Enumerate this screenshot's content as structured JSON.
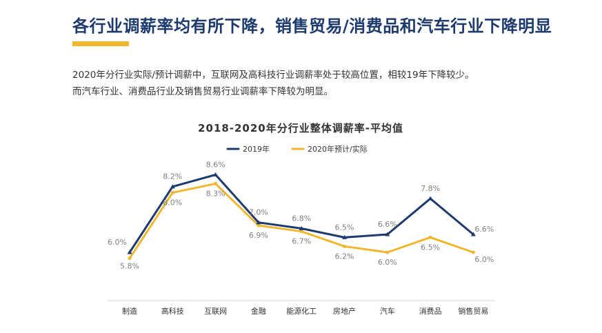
{
  "header": {
    "headline": "各行业调薪率均有所下降，销售贸易/消费品和汽车行业下降明显",
    "accent_color": "#f0b62e"
  },
  "description": {
    "line1": "2020年分行业实际/预计调薪中，互联网及高科技行业调薪率处于较高位置，相较19年下降较少。",
    "line2": "而汽车行业、消费品行业及销售贸易行业调薪率下降较为明显。"
  },
  "chart_data": {
    "type": "line",
    "title": "2018-2020年分行业整体调薪率-平均值",
    "categories": [
      "制造",
      "高科技",
      "互联网",
      "金融",
      "能源化工",
      "房地产",
      "汽车",
      "消费品",
      "销售贸易"
    ],
    "series": [
      {
        "name": "2019年",
        "color": "#1d3a6e",
        "values": [
          6.0,
          8.2,
          8.6,
          7.0,
          6.8,
          6.5,
          6.6,
          7.8,
          6.6
        ],
        "labels": [
          "6.0%",
          "8.2%",
          "8.6%",
          "7.0%",
          "6.8%",
          "6.5%",
          "6.6%",
          "7.8%",
          "6.6%"
        ]
      },
      {
        "name": "2020年预计/实际",
        "color": "#f0b62e",
        "values": [
          5.8,
          8.0,
          8.3,
          6.9,
          6.7,
          6.2,
          6.0,
          6.5,
          6.0
        ],
        "labels": [
          "5.8%",
          "8.0%",
          "8.3%",
          "6.9%",
          "6.7%",
          "6.2%",
          "6.0%",
          "6.5%",
          "6.0%"
        ]
      }
    ],
    "legend_position": "top-center",
    "grid": false
  }
}
